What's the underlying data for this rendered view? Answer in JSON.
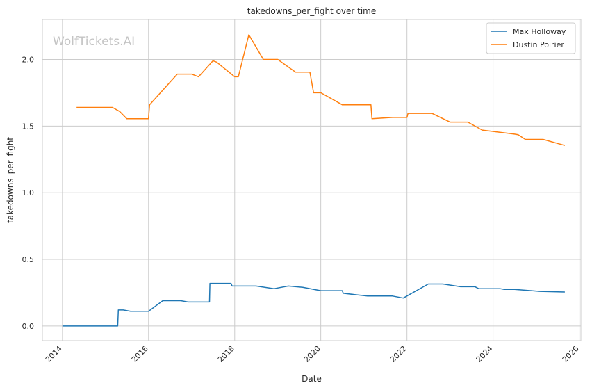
{
  "chart_data": {
    "type": "line",
    "title": "takedowns_per_fight over time",
    "xlabel": "Date",
    "ylabel": "takedowns_per_fight",
    "watermark": "WolfTickets.AI",
    "xlim": [
      "2013-07-15",
      "2026-01-15"
    ],
    "ylim": [
      -0.11,
      2.3
    ],
    "x_ticks": [
      "2014",
      "2016",
      "2018",
      "2020",
      "2022",
      "2024",
      "2026"
    ],
    "y_ticks": [
      "0.0",
      "0.5",
      "1.0",
      "1.5",
      "2.0"
    ],
    "grid": true,
    "legend_position": "top-right",
    "series": [
      {
        "name": "Max Holloway",
        "color": "#1f77b4",
        "points": [
          [
            "2014-01-01",
            0.0
          ],
          [
            "2015-04-15",
            0.0
          ],
          [
            "2015-04-20",
            0.12
          ],
          [
            "2015-06-01",
            0.12
          ],
          [
            "2015-08-01",
            0.11
          ],
          [
            "2016-01-01",
            0.11
          ],
          [
            "2016-05-01",
            0.19
          ],
          [
            "2016-10-01",
            0.19
          ],
          [
            "2016-12-01",
            0.18
          ],
          [
            "2017-06-01",
            0.18
          ],
          [
            "2017-06-05",
            0.32
          ],
          [
            "2017-12-01",
            0.32
          ],
          [
            "2017-12-10",
            0.3
          ],
          [
            "2018-07-01",
            0.3
          ],
          [
            "2018-12-01",
            0.28
          ],
          [
            "2019-04-01",
            0.3
          ],
          [
            "2019-08-01",
            0.29
          ],
          [
            "2020-01-01",
            0.265
          ],
          [
            "2020-07-01",
            0.265
          ],
          [
            "2020-07-10",
            0.245
          ],
          [
            "2021-02-01",
            0.225
          ],
          [
            "2021-09-01",
            0.225
          ],
          [
            "2021-12-01",
            0.21
          ],
          [
            "2022-07-01",
            0.315
          ],
          [
            "2022-11-01",
            0.315
          ],
          [
            "2023-04-01",
            0.295
          ],
          [
            "2023-08-01",
            0.295
          ],
          [
            "2023-09-01",
            0.28
          ],
          [
            "2024-03-01",
            0.28
          ],
          [
            "2024-04-01",
            0.275
          ],
          [
            "2024-07-01",
            0.275
          ],
          [
            "2025-02-01",
            0.26
          ],
          [
            "2025-09-01",
            0.255
          ]
        ]
      },
      {
        "name": "Dustin Poirier",
        "color": "#ff7f0e",
        "points": [
          [
            "2014-05-01",
            1.64
          ],
          [
            "2015-03-01",
            1.64
          ],
          [
            "2015-05-01",
            1.61
          ],
          [
            "2015-07-01",
            1.555
          ],
          [
            "2016-01-01",
            1.555
          ],
          [
            "2016-01-10",
            1.66
          ],
          [
            "2016-09-01",
            1.89
          ],
          [
            "2017-01-01",
            1.89
          ],
          [
            "2017-03-01",
            1.87
          ],
          [
            "2017-07-01",
            1.99
          ],
          [
            "2017-08-01",
            1.98
          ],
          [
            "2018-01-01",
            1.87
          ],
          [
            "2018-02-01",
            1.87
          ],
          [
            "2018-05-01",
            2.185
          ],
          [
            "2018-09-01",
            2.0
          ],
          [
            "2019-01-01",
            2.0
          ],
          [
            "2019-06-01",
            1.905
          ],
          [
            "2019-10-01",
            1.905
          ],
          [
            "2019-11-01",
            1.75
          ],
          [
            "2020-01-01",
            1.75
          ],
          [
            "2020-07-01",
            1.66
          ],
          [
            "2021-03-01",
            1.66
          ],
          [
            "2021-03-10",
            1.555
          ],
          [
            "2021-09-01",
            1.565
          ],
          [
            "2022-01-01",
            1.565
          ],
          [
            "2022-01-10",
            1.595
          ],
          [
            "2022-08-01",
            1.595
          ],
          [
            "2023-01-01",
            1.53
          ],
          [
            "2023-06-01",
            1.53
          ],
          [
            "2023-10-01",
            1.47
          ],
          [
            "2024-07-01",
            1.44
          ],
          [
            "2024-08-01",
            1.435
          ],
          [
            "2024-10-01",
            1.4
          ],
          [
            "2025-03-01",
            1.4
          ],
          [
            "2025-09-01",
            1.355
          ]
        ]
      }
    ]
  }
}
